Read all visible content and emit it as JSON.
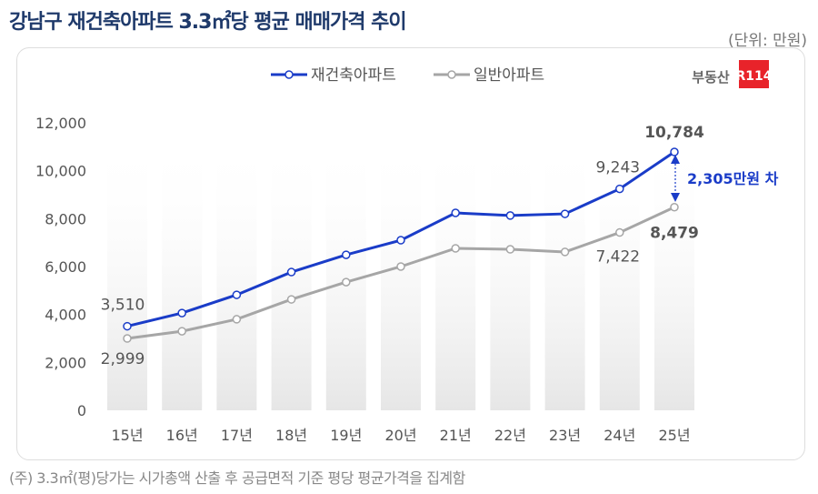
{
  "title": "강남구 재건축아파트 3.3㎡당 평균 매매가격 추이",
  "unit": "(단위: 만원)",
  "note": "(주) 3.3㎡(평)당가는 시가총액 산출 후 공급면적 기준 평당 평균가격을 집계함",
  "logo": {
    "text": "부동산",
    "badge": "R114",
    "badge_color": "#e8232a"
  },
  "annotation": "2,305만원 차",
  "chart_data": {
    "type": "line",
    "categories": [
      "15년",
      "16년",
      "17년",
      "18년",
      "19년",
      "20년",
      "21년",
      "22년",
      "23년",
      "24년",
      "25년"
    ],
    "ylim": [
      0,
      12000
    ],
    "yticks": [
      0,
      2000,
      4000,
      6000,
      8000,
      10000,
      12000
    ],
    "ytick_labels": [
      "0",
      "2,000",
      "4,000",
      "6,000",
      "8,000",
      "10,000",
      "12,000"
    ],
    "legend_position": "top",
    "series": [
      {
        "name": "재건축아파트",
        "color": "#1a3cc8",
        "values": [
          3510,
          4060,
          4820,
          5770,
          6490,
          7100,
          8240,
          8130,
          8200,
          9243,
          10784
        ],
        "labels": {
          "0": "3,510",
          "9": "9,243",
          "10": "10,784"
        }
      },
      {
        "name": "일반아파트",
        "color": "#a6a6a6",
        "values": [
          2999,
          3300,
          3800,
          4630,
          5350,
          6000,
          6760,
          6720,
          6610,
          7422,
          8479
        ],
        "labels": {
          "0": "2,999",
          "9": "7,422",
          "10": "8,479"
        }
      }
    ]
  }
}
